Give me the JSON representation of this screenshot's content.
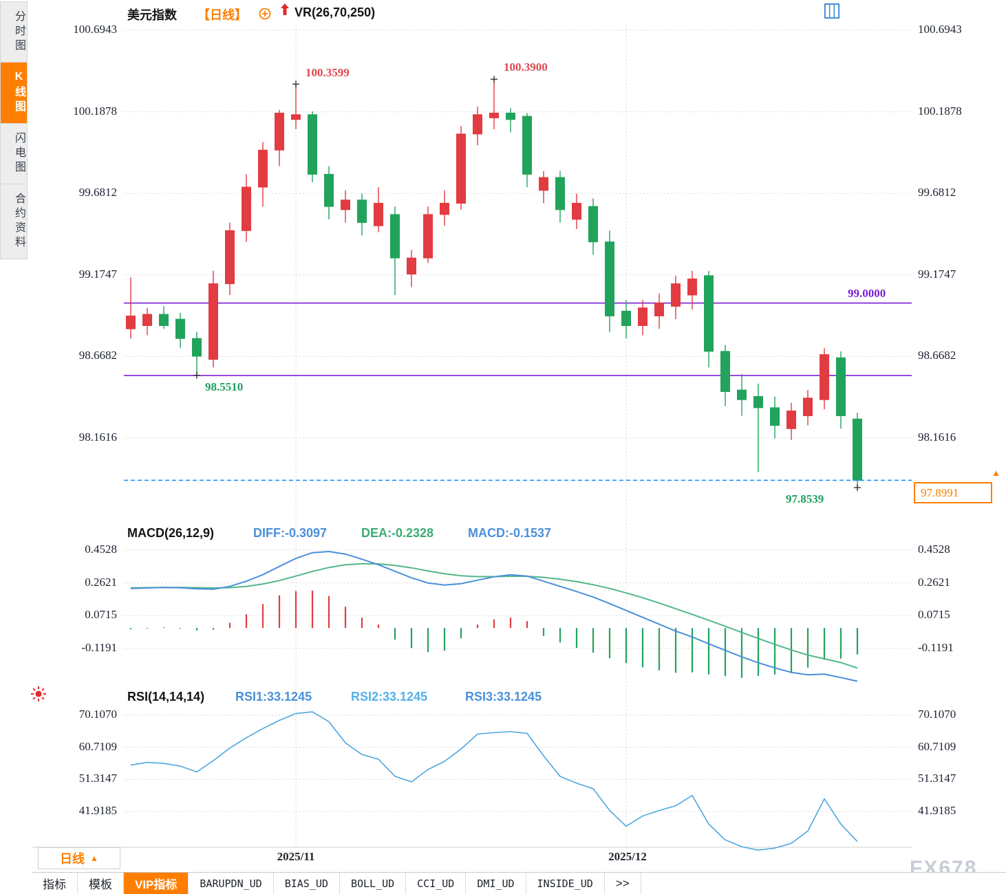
{
  "header": {
    "symbol": "美元指数",
    "period_tag": "【日线】",
    "indicator_label": "VR(26,70,250)"
  },
  "sidebar": {
    "tabs": [
      {
        "label": "分时图",
        "active": false
      },
      {
        "label": "K线图",
        "active": true
      },
      {
        "label": "闪电图",
        "active": false
      },
      {
        "label": "合约资料",
        "active": false
      }
    ]
  },
  "toolbar": {
    "icons": [
      "layout-quad-icon",
      "layout-split-left-icon",
      "layout-split-right-icon",
      "layout-columns-icon"
    ]
  },
  "price_panel": {
    "y_ticks": [
      "100.6943",
      "100.1878",
      "99.6812",
      "99.1747",
      "98.6682",
      "98.1616"
    ],
    "annotations": {
      "high1": "100.3599",
      "high2": "100.3900",
      "low1": "98.5510",
      "low2": "97.8539",
      "level_label": "99.0000",
      "current_price": "97.8991"
    }
  },
  "macd_panel": {
    "title": "MACD(26,12,9)",
    "diff_label": "DIFF:-0.3097",
    "dea_label": "DEA:-0.2328",
    "macd_label": "MACD:-0.1537",
    "y_ticks": [
      "0.4528",
      "0.2621",
      "0.0715",
      "-0.1191"
    ]
  },
  "rsi_panel": {
    "title": "RSI(14,14,14)",
    "rsi1_label": "RSI1:33.1245",
    "rsi2_label": "RSI2:33.1245",
    "rsi3_label": "RSI3:33.1245",
    "y_ticks": [
      "70.1070",
      "60.7109",
      "51.3147",
      "41.9185"
    ]
  },
  "x_axis": {
    "labels": [
      "2025/11",
      "2025/12"
    ]
  },
  "footer": {
    "period_selector": "日线",
    "period_arrow": "▲",
    "tabs": [
      {
        "label": "指标"
      },
      {
        "label": "模板"
      },
      {
        "label": "VIP指标",
        "active": true
      },
      {
        "label": "BARUPDN_UD",
        "mono": true
      },
      {
        "label": "BIAS_UD",
        "mono": true
      },
      {
        "label": "BOLL_UD",
        "mono": true
      },
      {
        "label": "CCI_UD",
        "mono": true
      },
      {
        "label": "DMI_UD",
        "mono": true
      },
      {
        "label": "INSIDE_UD",
        "mono": true
      },
      {
        "label": ">>"
      }
    ],
    "watermark": "FX678"
  },
  "colors": {
    "up": "#e23b41",
    "down": "#21a35c",
    "accent_orange": "#ff7e00",
    "purple": "#7b1fd2",
    "dashed_blue": "#1e90ff",
    "diff_blue": "#4a90d9",
    "dea_green": "#52b788",
    "rsi_blue": "#4da6e0",
    "grid": "#d9d9d9"
  },
  "chart_data": [
    {
      "type": "candlestick",
      "title": "美元指数 日线",
      "ylim": [
        97.65,
        100.82
      ],
      "y_ticks": [
        100.6943,
        100.1878,
        99.6812,
        99.1747,
        98.6682,
        98.1616
      ],
      "x_axis_labels": [
        {
          "label": "2025/11",
          "index": 10
        },
        {
          "label": "2025/12",
          "index": 30
        }
      ],
      "ohlc": [
        [
          98.84,
          99.16,
          98.78,
          98.92
        ],
        [
          98.86,
          98.97,
          98.8,
          98.93
        ],
        [
          98.93,
          98.98,
          98.84,
          98.86
        ],
        [
          98.9,
          98.94,
          98.72,
          98.78
        ],
        [
          98.78,
          98.82,
          98.551,
          98.67
        ],
        [
          98.65,
          99.2,
          98.6,
          99.12
        ],
        [
          99.12,
          99.5,
          99.05,
          99.45
        ],
        [
          99.45,
          99.8,
          99.38,
          99.72
        ],
        [
          99.72,
          100.0,
          99.6,
          99.95
        ],
        [
          99.95,
          100.2,
          99.85,
          100.18
        ],
        [
          100.14,
          100.3599,
          100.08,
          100.17
        ],
        [
          100.17,
          100.19,
          99.75,
          99.8
        ],
        [
          99.8,
          99.85,
          99.52,
          99.6
        ],
        [
          99.58,
          99.7,
          99.5,
          99.64
        ],
        [
          99.64,
          99.68,
          99.42,
          99.5
        ],
        [
          99.48,
          99.72,
          99.44,
          99.62
        ],
        [
          99.55,
          99.6,
          99.05,
          99.28
        ],
        [
          99.18,
          99.33,
          99.1,
          99.28
        ],
        [
          99.28,
          99.6,
          99.25,
          99.55
        ],
        [
          99.55,
          99.7,
          99.48,
          99.62
        ],
        [
          99.62,
          100.1,
          99.58,
          100.05
        ],
        [
          100.05,
          100.22,
          99.98,
          100.17
        ],
        [
          100.15,
          100.39,
          100.08,
          100.18
        ],
        [
          100.18,
          100.21,
          100.06,
          100.14
        ],
        [
          100.16,
          100.18,
          99.72,
          99.8
        ],
        [
          99.7,
          99.82,
          99.62,
          99.78
        ],
        [
          99.78,
          99.82,
          99.5,
          99.58
        ],
        [
          99.52,
          99.68,
          99.46,
          99.62
        ],
        [
          99.6,
          99.65,
          99.3,
          99.38
        ],
        [
          99.38,
          99.45,
          98.82,
          98.92
        ],
        [
          98.95,
          99.02,
          98.78,
          98.86
        ],
        [
          98.86,
          99.02,
          98.8,
          98.97
        ],
        [
          98.92,
          99.06,
          98.84,
          99.0
        ],
        [
          98.98,
          99.17,
          98.9,
          99.12
        ],
        [
          99.05,
          99.2,
          98.96,
          99.15
        ],
        [
          99.17,
          99.2,
          98.6,
          98.7
        ],
        [
          98.7,
          98.74,
          98.36,
          98.45
        ],
        [
          98.46,
          98.56,
          98.3,
          98.4
        ],
        [
          98.42,
          98.5,
          97.95,
          98.35
        ],
        [
          98.35,
          98.42,
          98.16,
          98.24
        ],
        [
          98.22,
          98.38,
          98.15,
          98.33
        ],
        [
          98.3,
          98.46,
          98.24,
          98.41
        ],
        [
          98.4,
          98.72,
          98.34,
          98.68
        ],
        [
          98.66,
          98.7,
          98.22,
          98.3
        ],
        [
          98.28,
          98.32,
          97.8539,
          97.8991
        ]
      ],
      "horizontal_levels": [
        {
          "value": 99.0,
          "label": "99.0000"
        },
        {
          "value": 98.55,
          "label": ""
        }
      ],
      "current_price": {
        "value": 97.8991,
        "style": "dashed"
      },
      "point_annotations": [
        {
          "index": 10,
          "type": "high",
          "value": 100.3599
        },
        {
          "index": 22,
          "type": "high",
          "value": 100.39
        },
        {
          "index": 4,
          "type": "low",
          "value": 98.551
        },
        {
          "index": 44,
          "type": "low",
          "value": 97.8539
        }
      ]
    },
    {
      "type": "macd",
      "title": "MACD(26,12,9)",
      "last_values": {
        "diff": -0.3097,
        "dea": -0.2328,
        "macd": -0.1537
      },
      "y_ticks": [
        0.4528,
        0.2621,
        0.0715,
        -0.1191
      ],
      "diff": [
        0.23,
        0.233,
        0.236,
        0.234,
        0.228,
        0.226,
        0.242,
        0.272,
        0.31,
        0.358,
        0.405,
        0.438,
        0.445,
        0.43,
        0.4,
        0.368,
        0.33,
        0.292,
        0.262,
        0.25,
        0.258,
        0.278,
        0.298,
        0.31,
        0.302,
        0.272,
        0.242,
        0.212,
        0.18,
        0.142,
        0.102,
        0.062,
        0.022,
        -0.018,
        -0.052,
        -0.092,
        -0.13,
        -0.168,
        -0.202,
        -0.232,
        -0.258,
        -0.272,
        -0.268,
        -0.288,
        -0.3097
      ],
      "dea": [
        0.234,
        0.235,
        0.236,
        0.236,
        0.235,
        0.233,
        0.235,
        0.242,
        0.256,
        0.276,
        0.302,
        0.329,
        0.352,
        0.368,
        0.374,
        0.373,
        0.364,
        0.35,
        0.332,
        0.316,
        0.304,
        0.299,
        0.299,
        0.301,
        0.301,
        0.295,
        0.284,
        0.27,
        0.252,
        0.23,
        0.204,
        0.176,
        0.145,
        0.112,
        0.079,
        0.045,
        0.01,
        -0.026,
        -0.061,
        -0.095,
        -0.128,
        -0.157,
        -0.179,
        -0.201,
        -0.2328
      ],
      "histogram": [
        -0.008,
        -0.004,
        0.004,
        -0.004,
        -0.014,
        -0.01,
        0.03,
        0.08,
        0.14,
        0.19,
        0.215,
        0.218,
        0.186,
        0.124,
        0.06,
        0.02,
        -0.068,
        -0.116,
        -0.14,
        -0.132,
        -0.06,
        0.02,
        0.05,
        0.06,
        0.04,
        -0.046,
        -0.084,
        -0.116,
        -0.144,
        -0.176,
        -0.204,
        -0.228,
        -0.246,
        -0.26,
        -0.258,
        -0.27,
        -0.28,
        -0.29,
        -0.278,
        -0.27,
        -0.262,
        -0.23,
        -0.185,
        -0.178,
        -0.1537
      ]
    },
    {
      "type": "line",
      "title": "RSI(14,14,14)",
      "note": "RSI1=RSI2=RSI3, last value 33.1245",
      "y_ticks": [
        70.107,
        60.7109,
        51.3147,
        41.9185
      ],
      "values": [
        55.5,
        56.3,
        56.0,
        55.2,
        53.5,
        56.8,
        60.5,
        63.5,
        66.2,
        68.6,
        70.6,
        71.1,
        68.2,
        62.0,
        58.6,
        57.2,
        52.2,
        50.6,
        54.2,
        56.6,
        60.2,
        64.6,
        65.0,
        65.3,
        64.8,
        58.2,
        52.2,
        50.2,
        48.6,
        42.2,
        37.6,
        40.6,
        42.2,
        43.6,
        46.6,
        38.2,
        33.6,
        31.6,
        30.6,
        31.2,
        32.6,
        36.2,
        45.6,
        38.2,
        33.1245
      ]
    }
  ]
}
